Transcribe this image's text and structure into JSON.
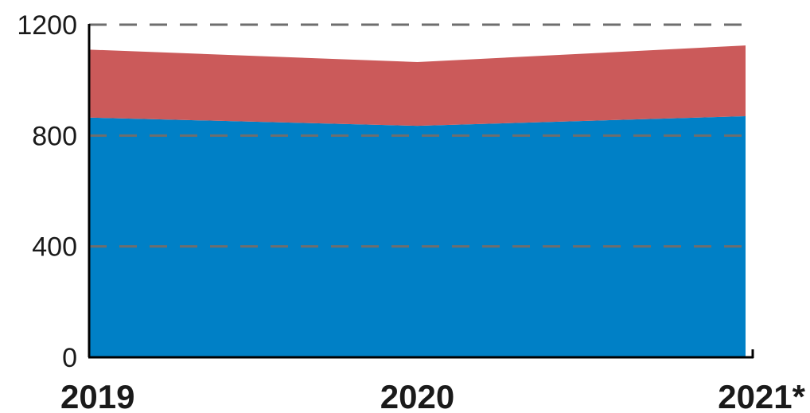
{
  "chart_data": {
    "type": "area",
    "stacked": true,
    "categories": [
      "2019",
      "2020",
      "2021*"
    ],
    "series": [
      {
        "values": [
          865,
          835,
          870
        ],
        "color": "#0080C6"
      },
      {
        "values": [
          245,
          230,
          255
        ],
        "color": "#CB5A5A"
      }
    ],
    "ylim": [
      0,
      1200
    ],
    "yticks": [
      0,
      400,
      800,
      1200
    ],
    "ytick_labels": [
      "0",
      "400",
      "800",
      "1200"
    ],
    "grid": true,
    "grid_style": "dashed",
    "legend": "none"
  }
}
